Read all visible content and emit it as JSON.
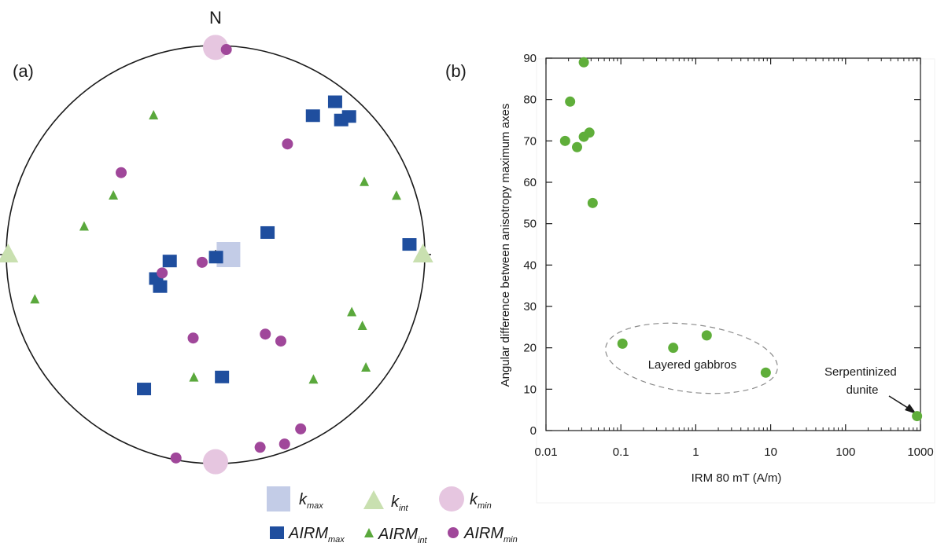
{
  "colors": {
    "airm_max": "#1f4e9e",
    "airm_int": "#5aa83c",
    "airm_min": "#a0479a",
    "k_max": "#b8c3e3",
    "k_int": "#c9e0b0",
    "k_min": "#e6c6e0",
    "scatter_point": "#5fae3a",
    "axis": "#1a1a1a"
  },
  "chart_data": [
    {
      "type": "scatter",
      "panel_label": "(a)",
      "projection": "stereonet",
      "north_label": "N",
      "units": "trend/plunge (degrees)",
      "legend_placement": "bottom",
      "legend": {
        "k_max": {
          "base": "k",
          "sub": "max"
        },
        "k_int": {
          "base": "k",
          "sub": "int"
        },
        "k_min": {
          "base": "k",
          "sub": "min"
        },
        "airm_max": {
          "base": "AIRM",
          "sub": "max"
        },
        "airm_int": {
          "base": "AIRM",
          "sub": "int"
        },
        "airm_min": {
          "base": "AIRM",
          "sub": "min"
        }
      },
      "series": [
        {
          "key": "k_max",
          "marker": "square-large",
          "points": [
            {
              "trend": 90,
              "plunge": 85
            }
          ]
        },
        {
          "key": "k_int",
          "marker": "triangle-large",
          "points": [
            {
              "trend": 270,
              "plunge": 1
            },
            {
              "trend": 90,
              "plunge": 1
            }
          ]
        },
        {
          "key": "k_min",
          "marker": "circle-large",
          "points": [
            {
              "trend": 0,
              "plunge": 1
            },
            {
              "trend": 180,
              "plunge": 1
            }
          ]
        },
        {
          "key": "airm_max",
          "marker": "square",
          "points": [
            {
              "trend": 35,
              "plunge": 20
            },
            {
              "trend": 43,
              "plunge": 13
            },
            {
              "trend": 38,
              "plunge": 8
            },
            {
              "trend": 44,
              "plunge": 9
            },
            {
              "trend": 87,
              "plunge": 8
            },
            {
              "trend": 67,
              "plunge": 68
            },
            {
              "trend": 240,
              "plunge": 65
            },
            {
              "trend": 248,
              "plunge": 65
            },
            {
              "trend": 262,
              "plunge": 72
            },
            {
              "trend": 170,
              "plunge": 89
            },
            {
              "trend": 177,
              "plunge": 41
            },
            {
              "trend": 208,
              "plunge": 28
            }
          ]
        },
        {
          "key": "airm_int",
          "marker": "triangle",
          "points": [
            {
              "trend": 336,
              "plunge": 28
            },
            {
              "trend": 300,
              "plunge": 43
            },
            {
              "trend": 282,
              "plunge": 36
            },
            {
              "trend": 256,
              "plunge": 12
            },
            {
              "trend": 64,
              "plunge": 22
            },
            {
              "trend": 72,
              "plunge": 10
            },
            {
              "trend": 113,
              "plunge": 30
            },
            {
              "trend": 116,
              "plunge": 23
            },
            {
              "trend": 142,
              "plunge": 25
            },
            {
              "trend": 127,
              "plunge": 11
            },
            {
              "trend": 190,
              "plunge": 40
            }
          ]
        },
        {
          "key": "airm_min",
          "marker": "circle",
          "points": [
            {
              "trend": 3,
              "plunge": 2
            },
            {
              "trend": 33,
              "plunge": 37
            },
            {
              "trend": 311,
              "plunge": 40
            },
            {
              "trend": 251,
              "plunge": 68
            },
            {
              "trend": 240,
              "plunge": 84
            },
            {
              "trend": 195,
              "plunge": 56
            },
            {
              "trend": 148,
              "plunge": 53
            },
            {
              "trend": 143,
              "plunge": 47
            },
            {
              "trend": 191,
              "plunge": 1
            },
            {
              "trend": 167,
              "plunge": 6
            },
            {
              "trend": 160,
              "plunge": 4
            },
            {
              "trend": 154,
              "plunge": 8
            }
          ]
        }
      ]
    },
    {
      "type": "scatter",
      "panel_label": "(b)",
      "xlabel": "IRM 80 mT (A/m)",
      "ylabel": "Angular difference between anisotropy maximum axes",
      "xscale": "log",
      "xlim": [
        0.01,
        1000
      ],
      "ylim": [
        0,
        90
      ],
      "xticks": [
        {
          "v": 0.01,
          "label": "0.01"
        },
        {
          "v": 0.1,
          "label": "0.1"
        },
        {
          "v": 1,
          "label": "1"
        },
        {
          "v": 10,
          "label": "10"
        },
        {
          "v": 100,
          "label": "100"
        },
        {
          "v": 1000,
          "label": "1000"
        }
      ],
      "yticks": [
        {
          "v": 0,
          "label": "0"
        },
        {
          "v": 10,
          "label": "10"
        },
        {
          "v": 20,
          "label": "20"
        },
        {
          "v": 30,
          "label": "30"
        },
        {
          "v": 40,
          "label": "40"
        },
        {
          "v": 50,
          "label": "50"
        },
        {
          "v": 60,
          "label": "60"
        },
        {
          "v": 70,
          "label": "70"
        },
        {
          "v": 80,
          "label": "80"
        },
        {
          "v": 90,
          "label": "90"
        }
      ],
      "grid": false,
      "points": [
        {
          "x": 0.032,
          "y": 89
        },
        {
          "x": 0.021,
          "y": 79.5
        },
        {
          "x": 0.018,
          "y": 70
        },
        {
          "x": 0.032,
          "y": 71
        },
        {
          "x": 0.038,
          "y": 72
        },
        {
          "x": 0.026,
          "y": 68.5
        },
        {
          "x": 0.042,
          "y": 55
        },
        {
          "x": 0.105,
          "y": 21
        },
        {
          "x": 0.5,
          "y": 20
        },
        {
          "x": 1.4,
          "y": 23
        },
        {
          "x": 8.6,
          "y": 14
        },
        {
          "x": 900,
          "y": 3.5
        }
      ],
      "annotations": {
        "group_label": "Layered gabbros",
        "point_label_lines": [
          "Serpentinized",
          "dunite"
        ]
      }
    }
  ]
}
